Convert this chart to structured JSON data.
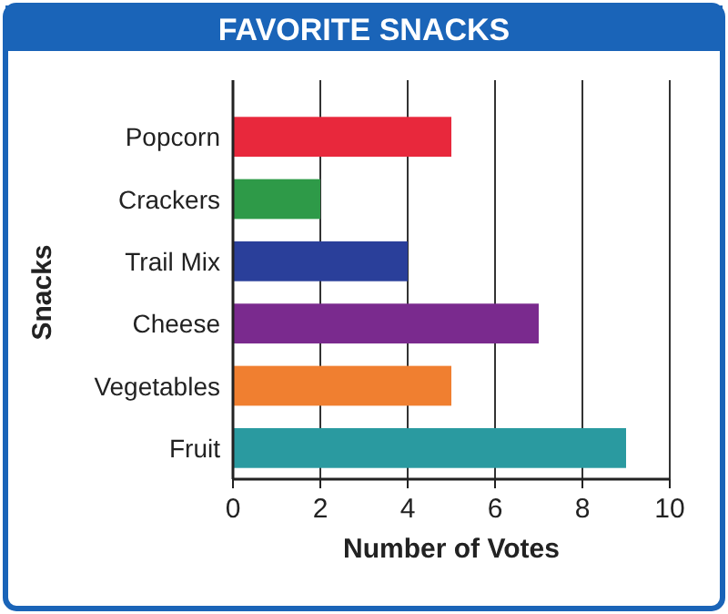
{
  "chart_data": {
    "type": "bar",
    "orientation": "horizontal",
    "title": "FAVORITE SNACKS",
    "xlabel": "Number of Votes",
    "ylabel": "Snacks",
    "categories": [
      "Popcorn",
      "Crackers",
      "Trail Mix",
      "Cheese",
      "Vegetables",
      "Fruit"
    ],
    "values": [
      5,
      2,
      4,
      7,
      5,
      9
    ],
    "colors": [
      "#e8283c",
      "#2e9a48",
      "#2a3f9a",
      "#7a2a8e",
      "#f07f30",
      "#2a9aa0"
    ],
    "xlim": [
      0,
      10
    ],
    "xticks": [
      0,
      2,
      4,
      6,
      8,
      10
    ],
    "grid": "x"
  }
}
